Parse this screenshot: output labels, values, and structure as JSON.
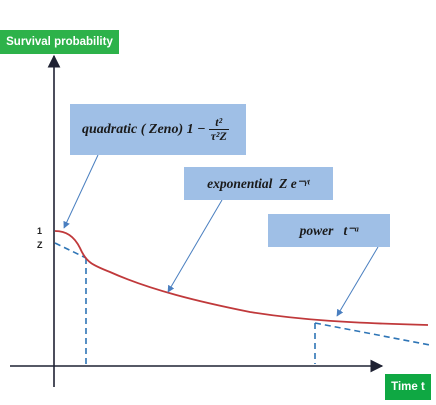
{
  "axes": {
    "y_label": "Survival probability",
    "x_label": "Time t",
    "tick_one": "1",
    "tick_z": "Z"
  },
  "boxes": {
    "quadratic": {
      "text": "quadratic ( Zeno) 1 −",
      "numerator": "t²",
      "denominator": "τ²Z"
    },
    "exponential": {
      "text": "exponential  Z e⁻ᵞᵗ"
    },
    "power": {
      "text": "power   t⁻ᵅ"
    }
  },
  "colors": {
    "curve": "#c0393b",
    "dashed": "#2e75b6",
    "axis": "#1f2233",
    "label_green": "#2db24a",
    "box_blue": "#9fbfe6"
  }
}
